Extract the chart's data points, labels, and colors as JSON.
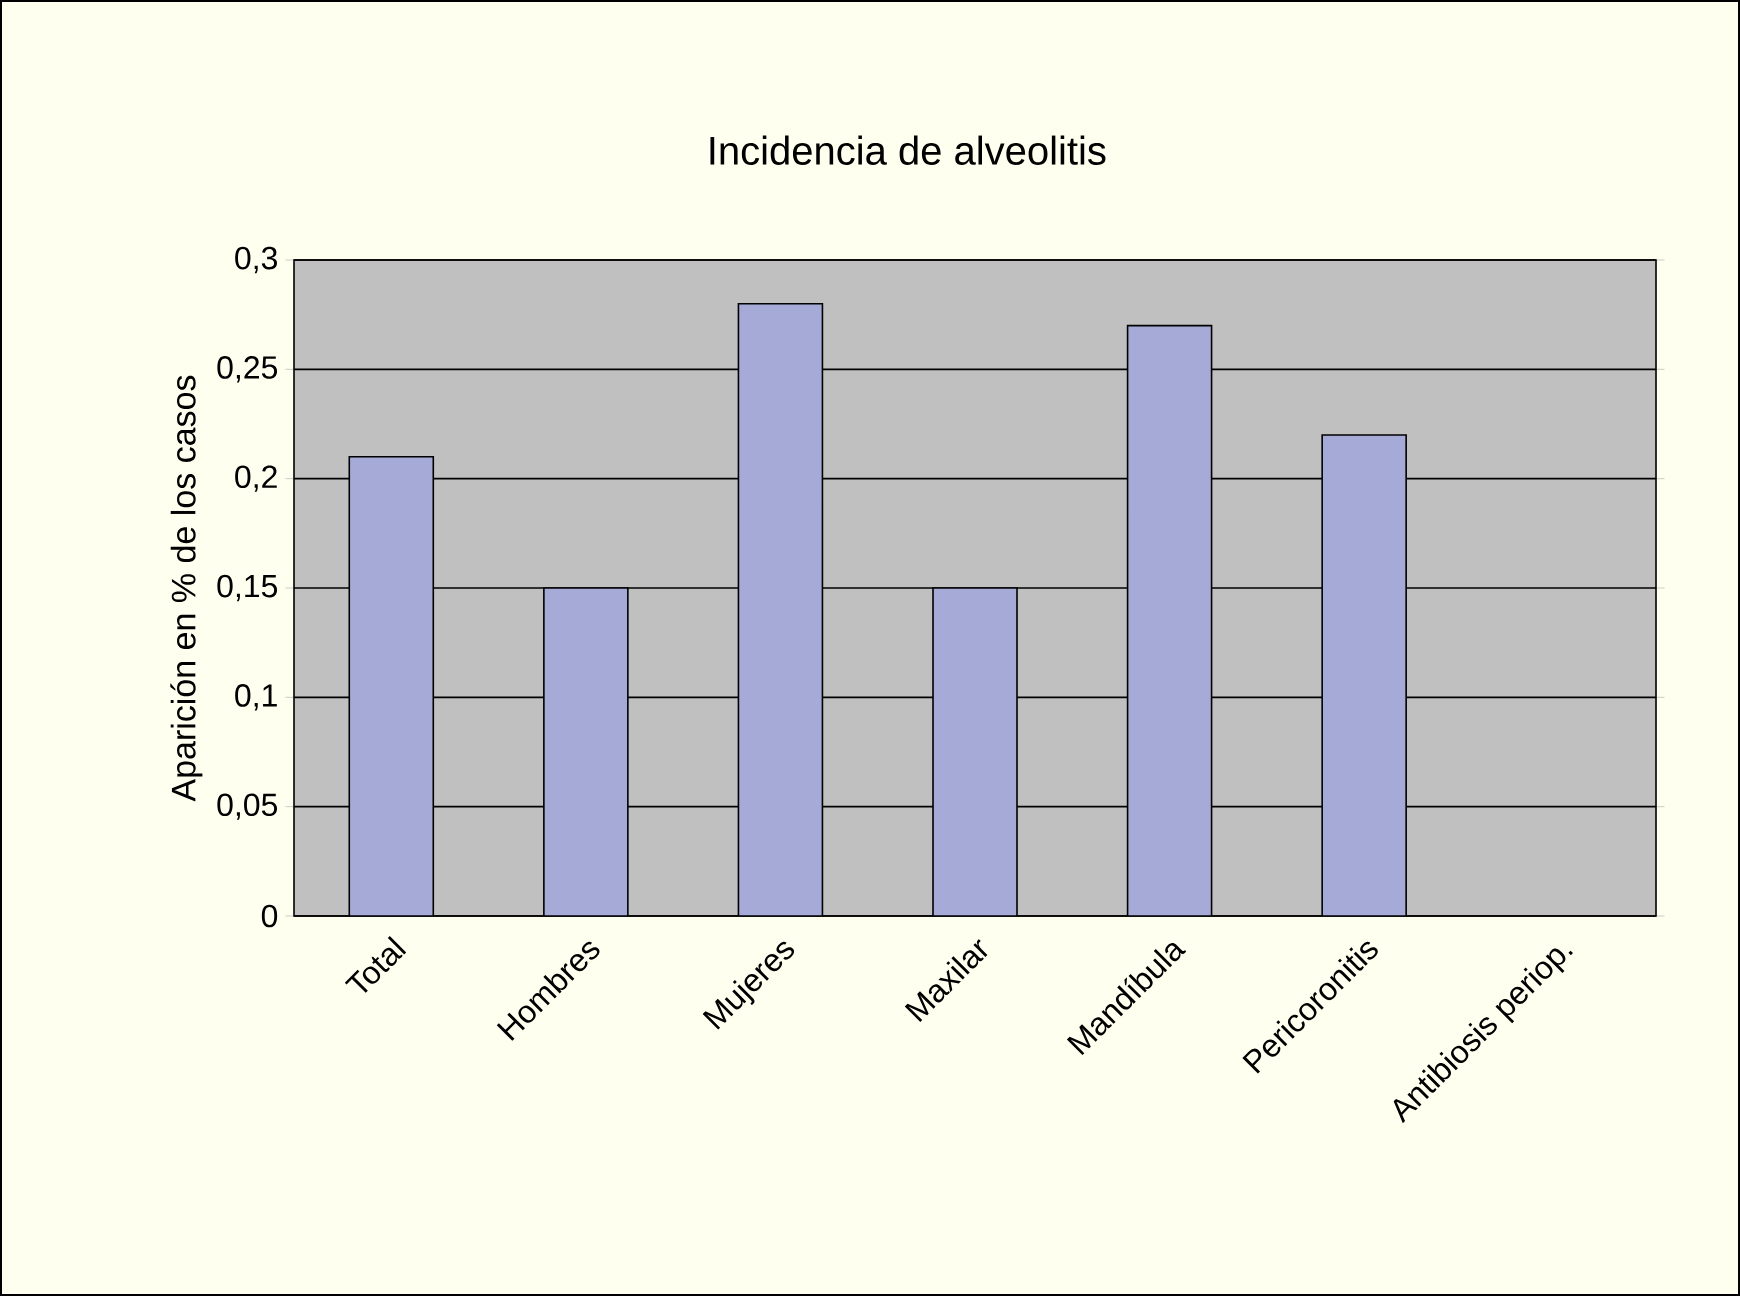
{
  "chart_data": {
    "type": "bar",
    "title": "Incidencia de alveolitis",
    "ylabel": "Aparición en % de los casos",
    "categories": [
      "Total",
      "Hombres",
      "Mujeres",
      "Maxilar",
      "Mandíbula",
      "Pericoronitis",
      "Antibiosis periop."
    ],
    "values": [
      0.21,
      0.15,
      0.28,
      0.15,
      0.27,
      0.22,
      null
    ],
    "color": "#a6aad6",
    "ylim": [
      0,
      0.3
    ],
    "yticks": [
      0,
      {
        "value": 0.05,
        "label": "0,05"
      },
      {
        "value": 0.1,
        "label": "0,1"
      },
      {
        "value": 0.15,
        "label": "0,15"
      },
      {
        "value": 0.2,
        "label": "0,2"
      },
      {
        "value": 0.25,
        "label": "0,25"
      },
      {
        "value": 0.3,
        "label": "0,3"
      }
    ],
    "grid": "y"
  }
}
